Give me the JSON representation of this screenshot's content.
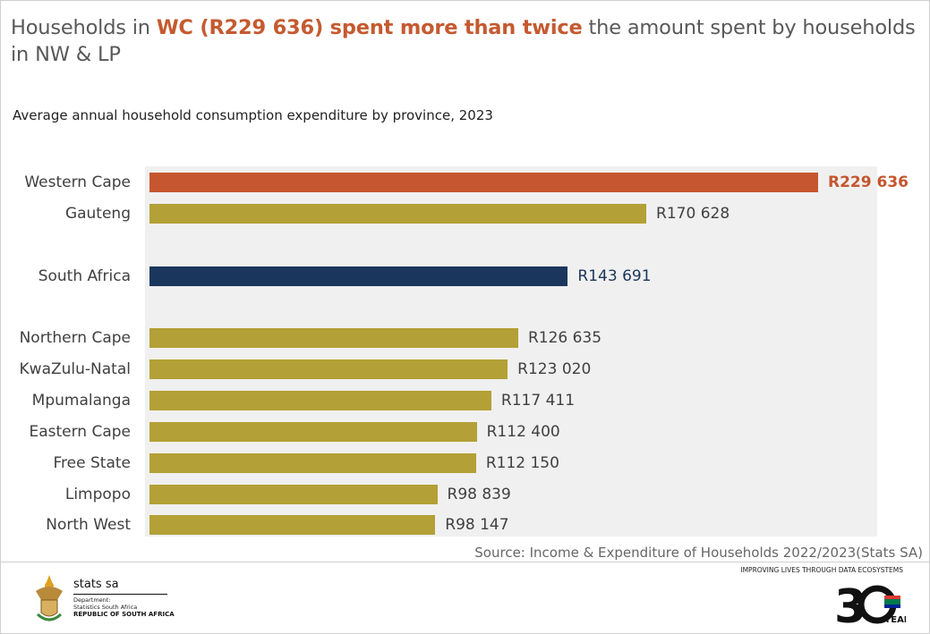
{
  "header": {
    "title_pre": "Households in ",
    "title_highlight": "WC (R229 636) spent more than twice",
    "title_post": " the amount spent by households in NW & LP"
  },
  "chart_data": {
    "type": "bar",
    "orientation": "horizontal",
    "title": "Average annual household consumption expenditure by province, 2023",
    "categories": [
      "Western Cape",
      "Gauteng",
      "South Africa",
      "Northern Cape",
      "KwaZulu-Natal",
      "Mpumalanga",
      "Eastern Cape",
      "Free State",
      "Limpopo",
      "North West"
    ],
    "values": [
      229636,
      170628,
      143691,
      126635,
      123020,
      117411,
      112400,
      112150,
      98839,
      98147
    ],
    "data_labels": [
      "R229 636",
      "R170 628",
      "R143 691",
      "R126 635",
      "R123 020",
      "R117 411",
      "R112 400",
      "R112 150",
      "R98 839",
      "R98 147"
    ],
    "colors": [
      "#c5562f",
      "#b3a036",
      "#1b365d",
      "#b3a036",
      "#b3a036",
      "#b3a036",
      "#b3a036",
      "#b3a036",
      "#b3a036",
      "#b3a036"
    ],
    "label_colors": [
      "#c5562f",
      "#404040",
      "#1b365d",
      "#404040",
      "#404040",
      "#404040",
      "#404040",
      "#404040",
      "#404040",
      "#404040"
    ],
    "xlim": [
      0,
      229636
    ],
    "grid": false,
    "legend": "none"
  },
  "source": "Source: Income & Expenditure of Households 2022/2023(Stats SA)",
  "footer": {
    "logo_name": "stats sa",
    "dept": "Department:",
    "dept2": "Statistics South Africa",
    "republic": "REPUBLIC OF SOUTH AFRICA",
    "tagline": "IMPROVING LIVES THROUGH DATA ECOSYSTEMS",
    "anniversary_logo": "30 YEARS OF FREEDOM"
  }
}
